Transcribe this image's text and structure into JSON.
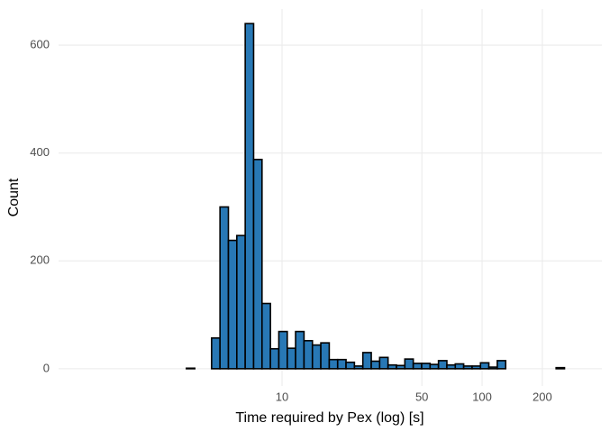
{
  "chart_data": {
    "type": "histogram",
    "xlabel": "Time required by Pex (log) [s]",
    "ylabel": "Count",
    "bins": [
      1.042,
      1.148,
      1.265,
      1.393,
      1.535,
      1.69,
      1.862,
      2.051,
      2.259,
      2.489,
      2.742,
      3.02,
      3.327,
      3.664,
      4.036,
      4.446,
      4.898,
      5.395,
      5.943,
      6.546,
      7.211,
      7.943,
      8.75,
      9.638,
      10.62,
      11.69,
      12.88,
      14.19,
      15.63,
      17.22,
      18.97,
      20.89,
      23.01,
      25.35,
      27.93,
      30.76,
      33.88,
      37.33,
      41.11,
      45.29,
      49.89,
      54.95,
      60.53,
      66.68,
      73.45,
      80.91,
      89.13,
      98.18,
      108.1,
      119.1,
      131.2,
      144.5,
      159.2,
      175.4,
      193.2,
      212.8,
      234.4,
      258.2,
      284.4
    ],
    "values": [
      0,
      0,
      0,
      0,
      0,
      0,
      0,
      0,
      0,
      0,
      0,
      0,
      1,
      0,
      0,
      57,
      300,
      238,
      247,
      640,
      388,
      121,
      37,
      69,
      38,
      69,
      52,
      44,
      48,
      17,
      17,
      12,
      5,
      30,
      14,
      21,
      7,
      6,
      18,
      10,
      10,
      8,
      15,
      7,
      9,
      5,
      5,
      11,
      3,
      15,
      0,
      0,
      0,
      0,
      0,
      0,
      2,
      0
    ],
    "color": "#2878b5",
    "edgecolor": "#000000",
    "xscale": "log",
    "xlim": [
      0.764,
      397
    ],
    "xticks": [
      10,
      50,
      100,
      200
    ],
    "ylim": [
      -32,
      667
    ],
    "yticks": [
      0,
      200,
      400,
      600
    ],
    "grid": true
  }
}
